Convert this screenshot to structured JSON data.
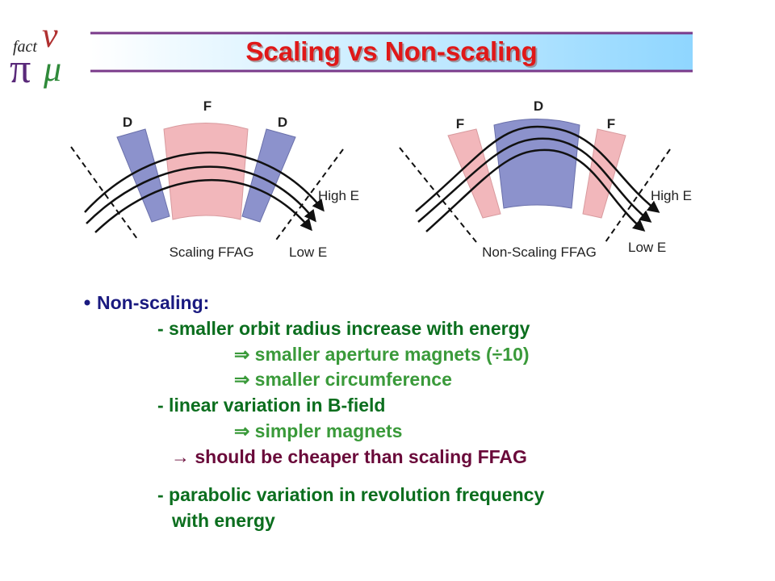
{
  "header": {
    "logo": {
      "text": "fact",
      "symbols": [
        "ν",
        "π",
        "μ"
      ]
    },
    "title": "Scaling vs Non-scaling"
  },
  "diagrams": [
    {
      "magnets": [
        "D",
        "F",
        "D"
      ],
      "high_label": "High E",
      "low_label": "Low E",
      "caption": "Scaling FFAG"
    },
    {
      "magnets": [
        "F",
        "D",
        "F"
      ],
      "high_label": "High E",
      "low_label": "Low E",
      "caption": "Non-Scaling FFAG"
    }
  ],
  "bullet": {
    "heading": "Non-scaling:",
    "lines": [
      "- smaller orbit radius increase with energy",
      "⇒ smaller aperture magnets (÷10)",
      "⇒ smaller circumference",
      "- linear variation in B-field",
      "⇒ simpler magnets",
      "→ should be cheaper than scaling FFAG",
      "- parabolic variation in revolution frequency",
      "with energy"
    ]
  }
}
